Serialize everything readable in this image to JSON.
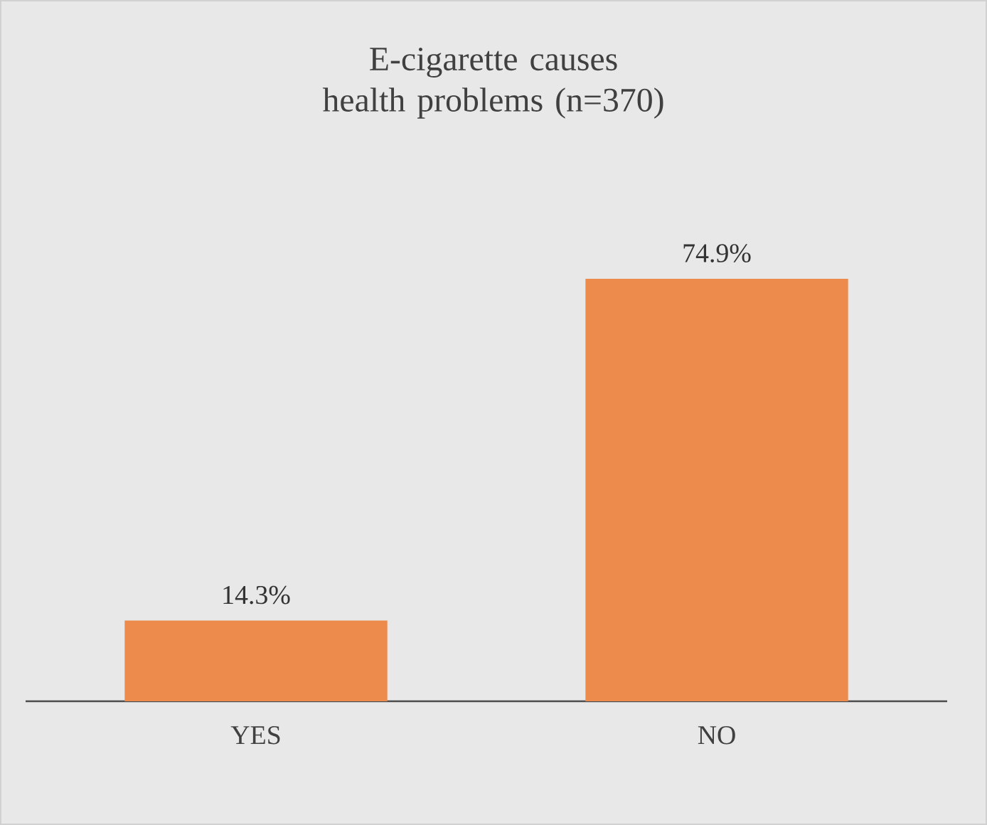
{
  "chart_data": {
    "type": "bar",
    "title": "E-cigarette causes health problems (n=370)",
    "categories": [
      "YES",
      "NO"
    ],
    "values": [
      14.3,
      74.9
    ],
    "value_labels": [
      "14.3%",
      "74.9%"
    ],
    "color": "#ed8b4c"
  }
}
